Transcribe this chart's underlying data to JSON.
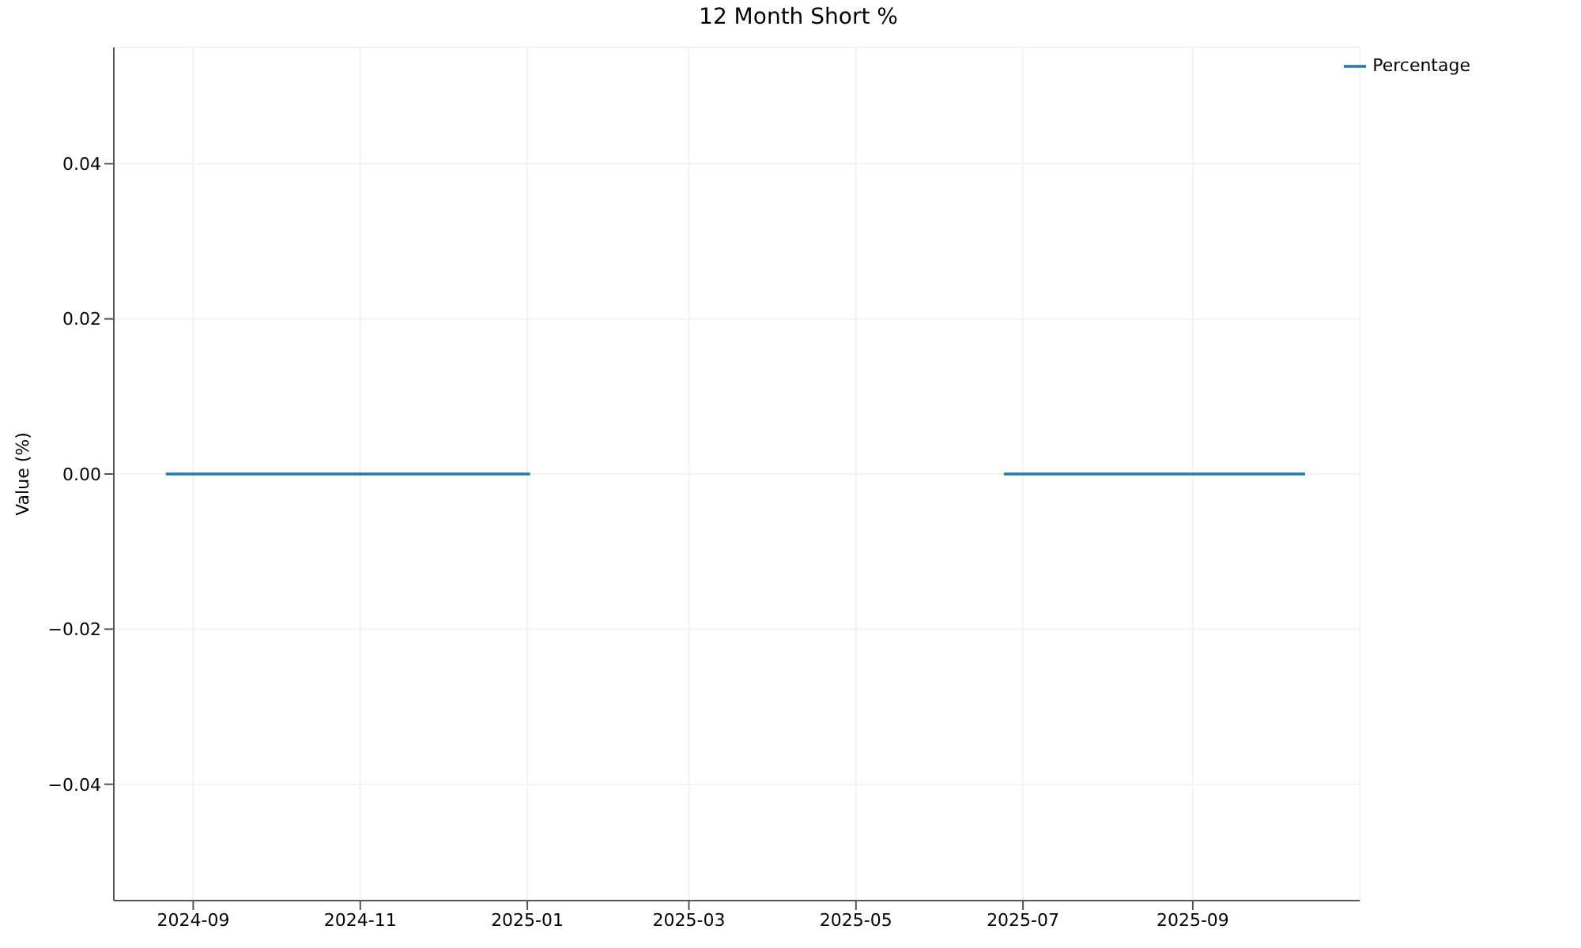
{
  "chart_data": {
    "type": "line",
    "title": "12 Month Short %",
    "ylabel": "Value (%)",
    "x": [
      "2024-08-22",
      "2025-01-02",
      "2025-03-15",
      "2025-06-24",
      "2025-10-12"
    ],
    "series": [
      {
        "name": "Percentage",
        "color": "#1f77b4",
        "values": [
          0,
          0,
          null,
          0,
          0
        ]
      }
    ],
    "xlim": [
      "2024-08-03",
      "2025-11-01"
    ],
    "xticks": [
      "2024-09",
      "2024-11",
      "2025-01",
      "2025-03",
      "2025-05",
      "2025-07",
      "2025-09"
    ],
    "ylim": [
      -0.055,
      0.055
    ],
    "yticks": [
      {
        "value": -0.04,
        "label": "−0.04"
      },
      {
        "value": -0.02,
        "label": "−0.02"
      },
      {
        "value": 0,
        "label": "0.00"
      },
      {
        "value": 0.02,
        "label": "0.02"
      },
      {
        "value": 0.04,
        "label": "0.04"
      }
    ],
    "grid": true,
    "legend": "top right",
    "marker": "none",
    "line_style": "solid"
  }
}
